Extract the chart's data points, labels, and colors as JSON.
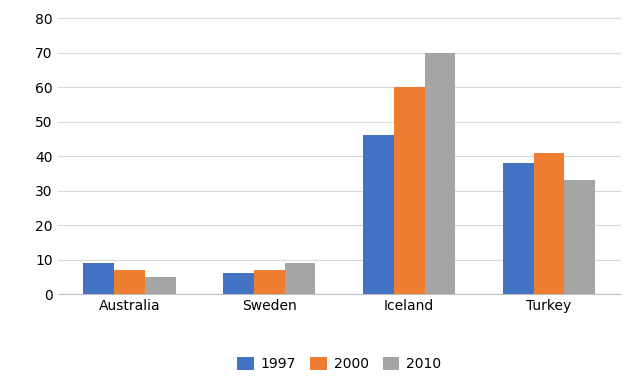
{
  "categories": [
    "Australia",
    "Sweden",
    "Iceland",
    "Turkey"
  ],
  "series": {
    "1997": [
      9,
      6,
      46,
      38
    ],
    "2000": [
      7,
      7,
      60,
      41
    ],
    "2010": [
      5,
      9,
      70,
      33
    ]
  },
  "series_labels": [
    "1997",
    "2000",
    "2010"
  ],
  "bar_colors": [
    "#4472C4",
    "#ED7D31",
    "#A5A5A5"
  ],
  "ylim": [
    0,
    82
  ],
  "yticks": [
    0,
    10,
    20,
    30,
    40,
    50,
    60,
    70,
    80
  ],
  "grid_color": "#D9D9D9",
  "background_color": "#FFFFFF",
  "figure_background": "#FFFFFF",
  "bar_width": 0.22,
  "tick_fontsize": 10,
  "legend_fontsize": 10,
  "xlabel_fontsize": 11
}
